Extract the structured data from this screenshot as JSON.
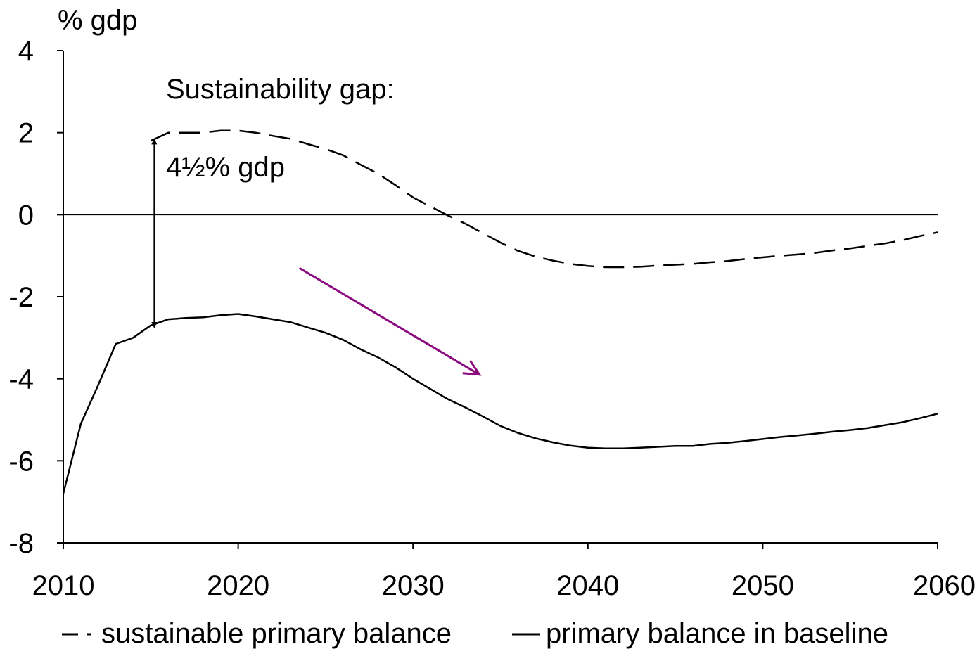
{
  "chart_data": {
    "type": "line",
    "ylabel": "% gdp",
    "xlim": [
      2010,
      2060
    ],
    "ylim": [
      -8,
      4
    ],
    "x_ticks": [
      "2010",
      "2020",
      "2030",
      "2040",
      "2050",
      "2060"
    ],
    "y_ticks": [
      "4",
      "2",
      "0",
      "-2",
      "-4",
      "-6",
      "-8"
    ],
    "grid": false,
    "legend_position": "bottom",
    "series": [
      {
        "name": "sustainable primary balance",
        "style": "dashed",
        "color": "#000000",
        "x": [
          2015,
          2016,
          2017,
          2018,
          2019,
          2020,
          2021,
          2022,
          2023,
          2024,
          2025,
          2026,
          2027,
          2028,
          2029,
          2030,
          2031,
          2032,
          2033,
          2034,
          2035,
          2036,
          2037,
          2038,
          2039,
          2040,
          2041,
          2042,
          2043,
          2044,
          2045,
          2046,
          2047,
          2048,
          2049,
          2050,
          2051,
          2052,
          2053,
          2054,
          2055,
          2056,
          2057,
          2058,
          2059,
          2060
        ],
        "y": [
          1.8,
          2.0,
          2.0,
          2.0,
          2.05,
          2.05,
          2.0,
          1.92,
          1.85,
          1.72,
          1.6,
          1.45,
          1.22,
          1.0,
          0.72,
          0.42,
          0.2,
          -0.02,
          -0.22,
          -0.45,
          -0.68,
          -0.88,
          -1.02,
          -1.12,
          -1.2,
          -1.25,
          -1.28,
          -1.28,
          -1.27,
          -1.24,
          -1.22,
          -1.2,
          -1.16,
          -1.13,
          -1.08,
          -1.04,
          -1.0,
          -0.97,
          -0.93,
          -0.87,
          -0.82,
          -0.76,
          -0.7,
          -0.62,
          -0.52,
          -0.43
        ]
      },
      {
        "name": "primary balance in baseline",
        "style": "solid",
        "color": "#000000",
        "x": [
          2010,
          2011,
          2012,
          2013,
          2014,
          2015,
          2016,
          2017,
          2018,
          2019,
          2020,
          2021,
          2022,
          2023,
          2024,
          2025,
          2026,
          2027,
          2028,
          2029,
          2030,
          2031,
          2032,
          2033,
          2034,
          2035,
          2036,
          2037,
          2038,
          2039,
          2040,
          2041,
          2042,
          2043,
          2044,
          2045,
          2046,
          2047,
          2048,
          2049,
          2050,
          2051,
          2052,
          2053,
          2054,
          2055,
          2056,
          2057,
          2058,
          2059,
          2060
        ],
        "y": [
          -6.8,
          -5.1,
          -4.15,
          -3.15,
          -3.0,
          -2.7,
          -2.55,
          -2.52,
          -2.5,
          -2.45,
          -2.42,
          -2.48,
          -2.55,
          -2.62,
          -2.75,
          -2.88,
          -3.05,
          -3.28,
          -3.48,
          -3.72,
          -4.0,
          -4.25,
          -4.5,
          -4.7,
          -4.92,
          -5.15,
          -5.32,
          -5.45,
          -5.55,
          -5.63,
          -5.68,
          -5.7,
          -5.7,
          -5.68,
          -5.66,
          -5.64,
          -5.64,
          -5.59,
          -5.56,
          -5.52,
          -5.47,
          -5.42,
          -5.38,
          -5.34,
          -5.29,
          -5.25,
          -5.2,
          -5.13,
          -5.06,
          -4.96,
          -4.85
        ]
      }
    ],
    "annotations": {
      "gap_title": "Sustainability gap:",
      "gap_value": "4½% gdp",
      "gap_arrow": {
        "x": 2015.2,
        "y_from": 1.8,
        "y_to": -2.7
      },
      "trend_arrow": {
        "color": "#8b0a7f",
        "x_from": 2023.5,
        "y_from": -1.3,
        "x_to": 2033.8,
        "y_to": -3.9
      }
    }
  }
}
